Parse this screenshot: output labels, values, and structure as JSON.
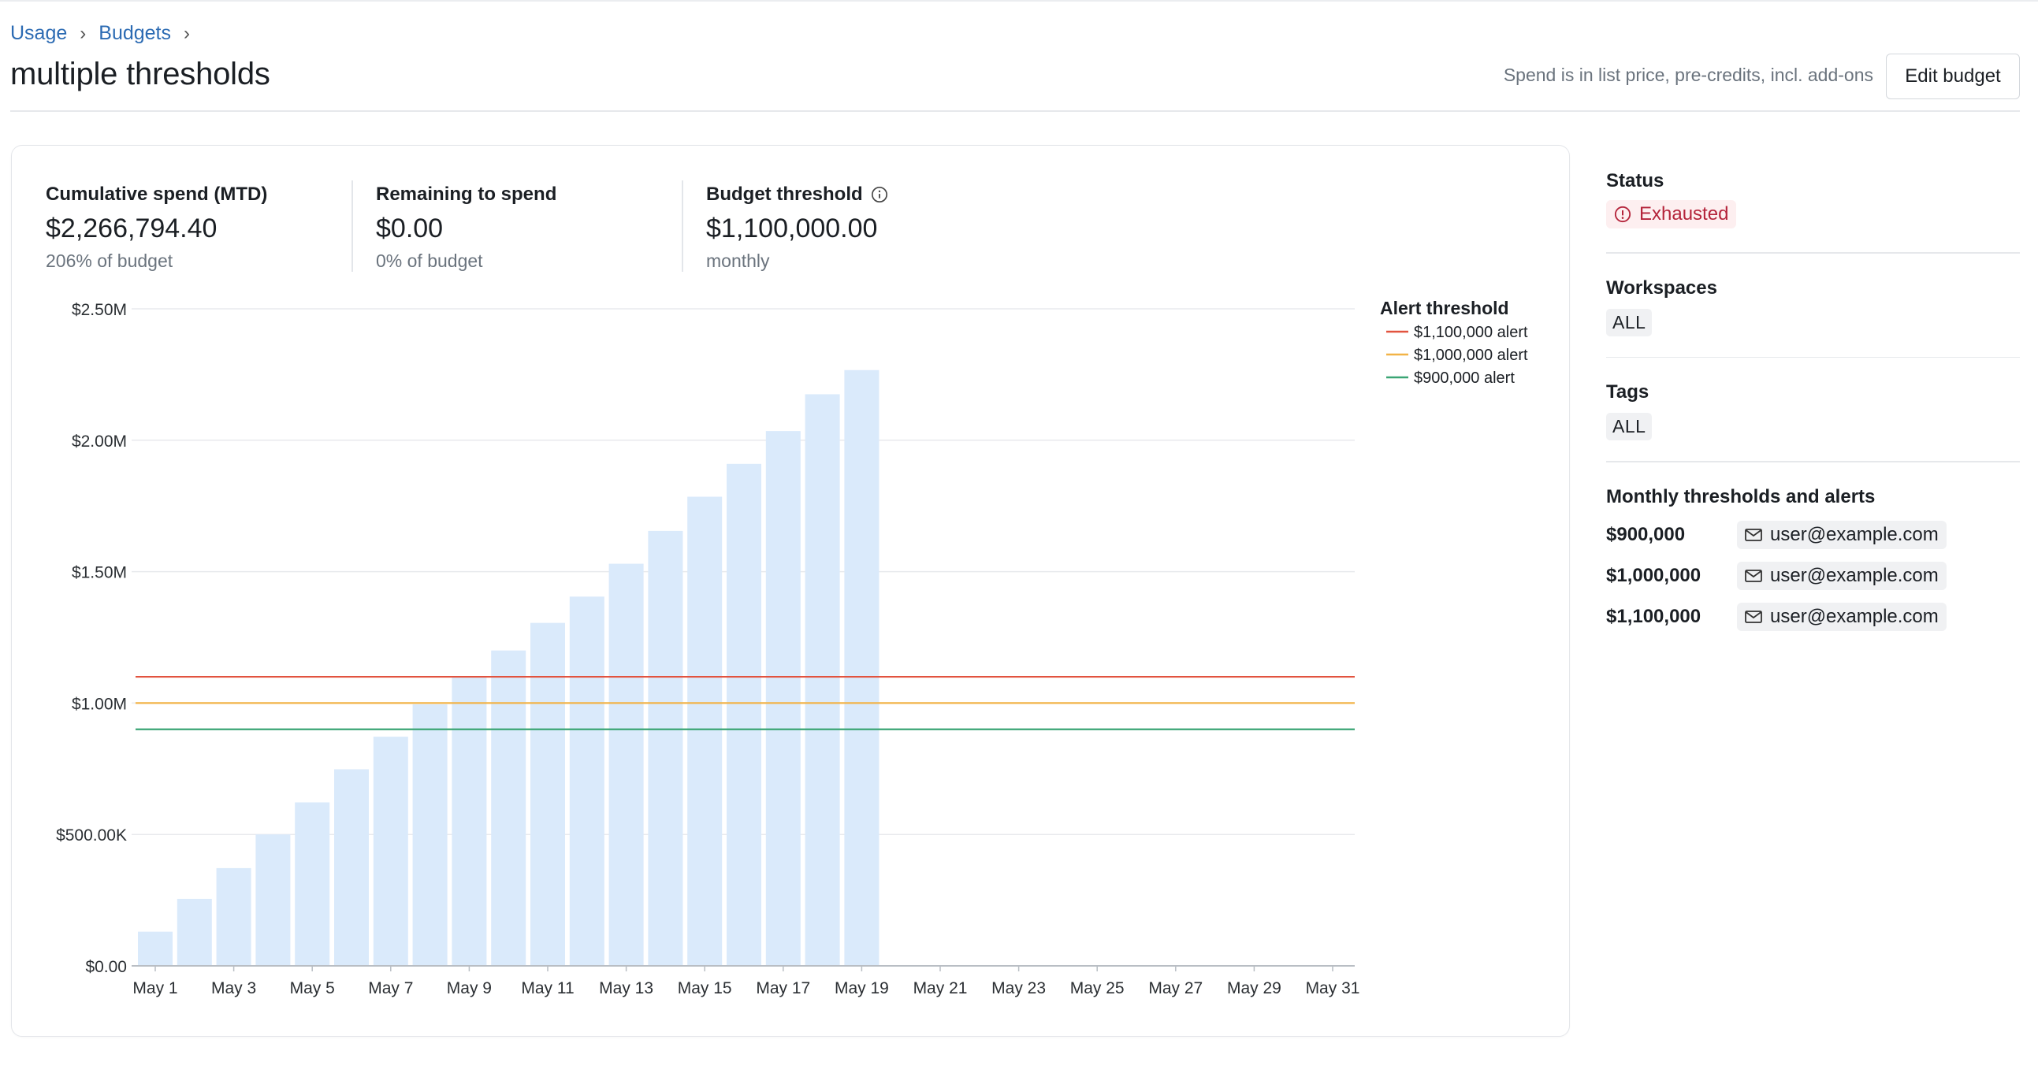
{
  "breadcrumb": [
    {
      "label": "Usage"
    },
    {
      "label": "Budgets"
    }
  ],
  "page": {
    "title": "multiple thresholds",
    "note": "Spend is in list price, pre-credits, incl. add-ons",
    "edit_button": "Edit budget"
  },
  "stats": [
    {
      "label": "Cumulative spend (MTD)",
      "value": "$2,266,794.40",
      "sub": "206% of budget"
    },
    {
      "label": "Remaining to spend",
      "value": "$0.00",
      "sub": "0% of budget"
    },
    {
      "label": "Budget threshold",
      "value": "$1,100,000.00",
      "sub": "monthly",
      "icon": "info-icon"
    }
  ],
  "chart_data": {
    "type": "bar",
    "title": "",
    "xlabel": "",
    "ylabel": "",
    "ylim": [
      0,
      2500000
    ],
    "y_ticks": [
      {
        "value": 0,
        "label": "$0.00"
      },
      {
        "value": 500000,
        "label": "$500.00K"
      },
      {
        "value": 1000000,
        "label": "$1.00M"
      },
      {
        "value": 1500000,
        "label": "$1.50M"
      },
      {
        "value": 2000000,
        "label": "$2.00M"
      },
      {
        "value": 2500000,
        "label": "$2.50M"
      }
    ],
    "x_tick_labels": [
      "May 1",
      "May 3",
      "May 5",
      "May 7",
      "May 9",
      "May 11",
      "May 13",
      "May 15",
      "May 17",
      "May 19",
      "May 21",
      "May 23",
      "May 25",
      "May 27",
      "May 29",
      "May 31"
    ],
    "days": 31,
    "values": [
      130000,
      255000,
      372000,
      500000,
      622000,
      748000,
      872000,
      995000,
      1102000,
      1200000,
      1305000,
      1405000,
      1530000,
      1655000,
      1785000,
      1910000,
      2035000,
      2175000,
      2266794.4
    ],
    "bar_color": "#daeafb",
    "grid": true,
    "legend": {
      "title": "Alert threshold",
      "placement": "top-right"
    },
    "thresholds": [
      {
        "label": "$1,100,000 alert",
        "value": 1100000,
        "color": "#e2533f"
      },
      {
        "label": "$1,000,000 alert",
        "value": 1000000,
        "color": "#f2b347"
      },
      {
        "label": "$900,000 alert",
        "value": 900000,
        "color": "#3aa574"
      }
    ]
  },
  "sidebar": {
    "status": {
      "title": "Status",
      "value": "Exhausted",
      "icon": "alert-circle-icon",
      "color": "#b4233a"
    },
    "workspaces": {
      "title": "Workspaces",
      "value": "ALL"
    },
    "tags": {
      "title": "Tags",
      "value": "ALL"
    },
    "alerts": {
      "title": "Monthly thresholds and alerts",
      "items": [
        {
          "amount": "$900,000",
          "email": "user@example.com"
        },
        {
          "amount": "$1,000,000",
          "email": "user@example.com"
        },
        {
          "amount": "$1,100,000",
          "email": "user@example.com"
        }
      ]
    }
  }
}
